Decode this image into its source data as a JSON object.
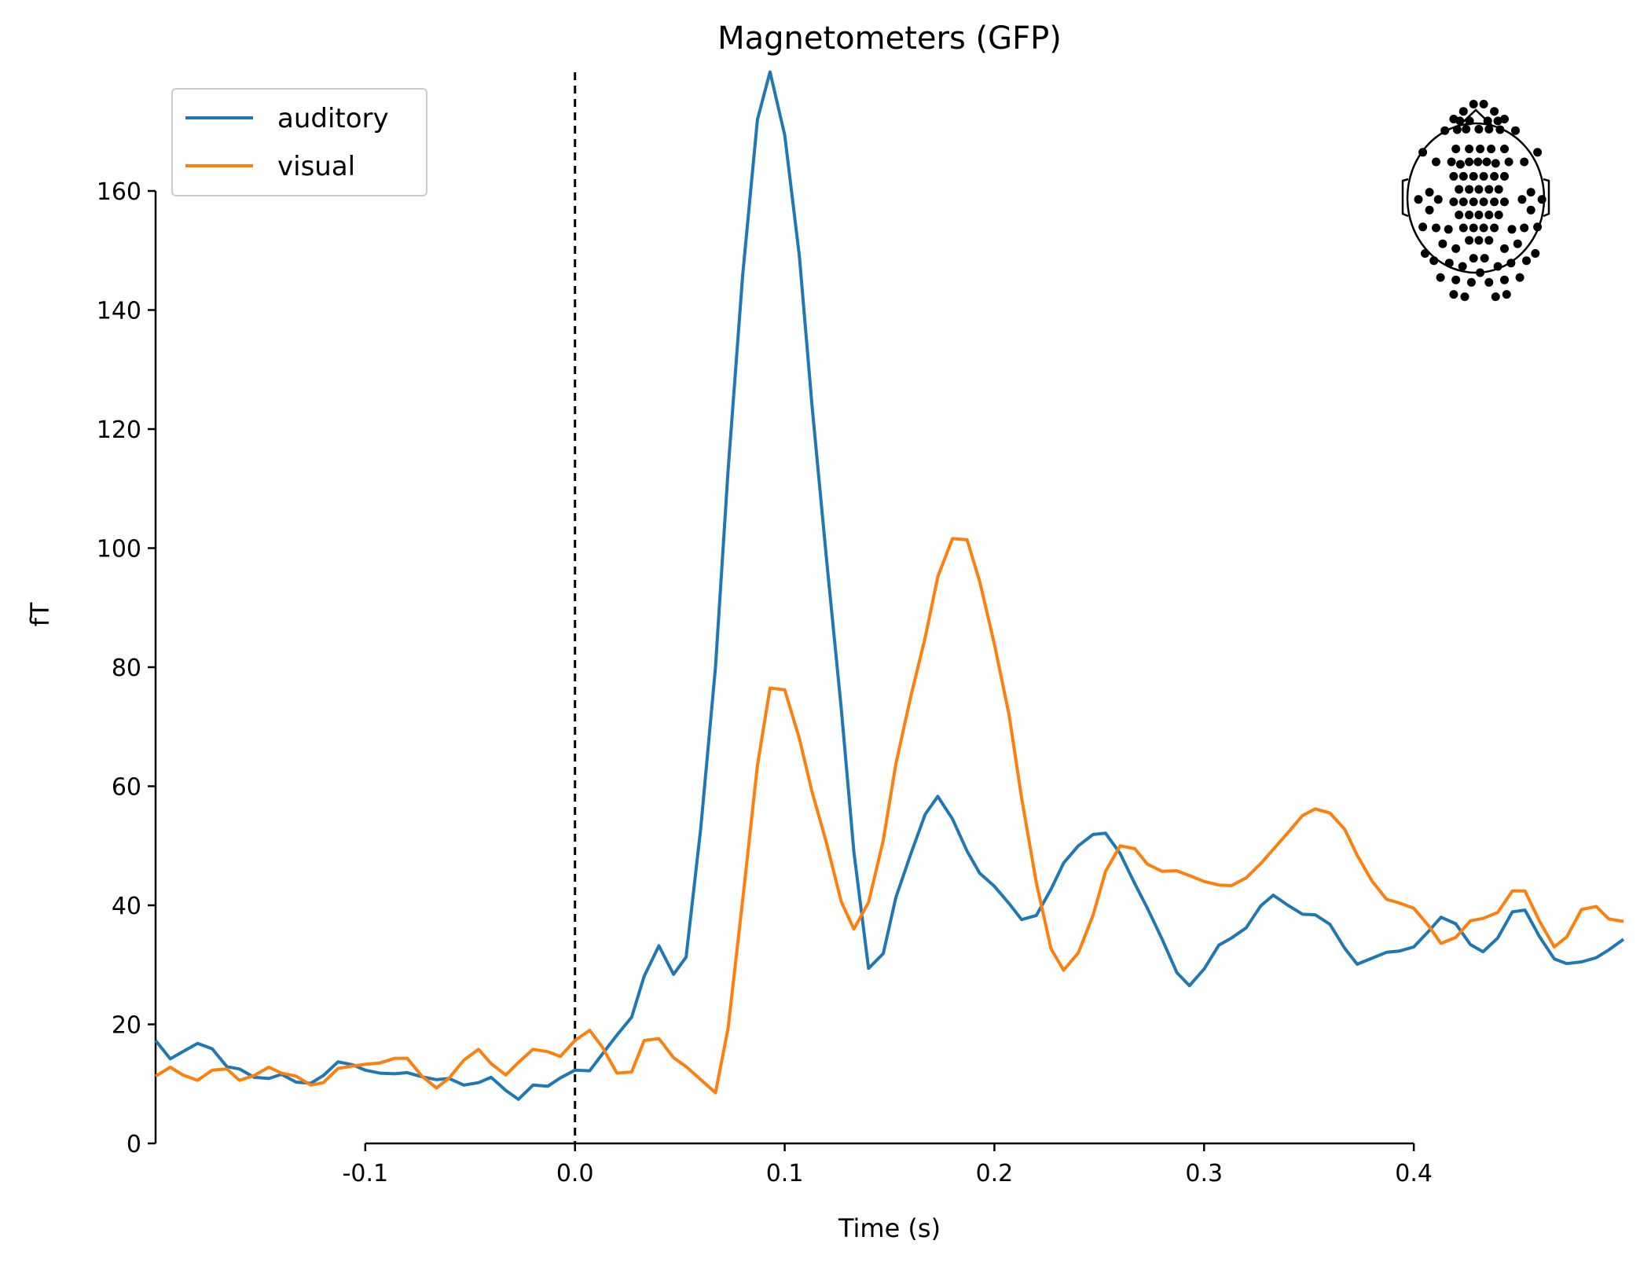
{
  "chart_data": {
    "type": "line",
    "title": "Magnetometers (GFP)",
    "xlabel": "Time (s)",
    "ylabel": "fT",
    "xlim": [
      -0.2,
      0.5
    ],
    "ylim": [
      0,
      160
    ],
    "x_ticks": [
      -0.1,
      0.0,
      0.1,
      0.2,
      0.3,
      0.4
    ],
    "x_tick_labels": [
      "-0.1",
      "0.0",
      "0.1",
      "0.2",
      "0.3",
      "0.4"
    ],
    "y_ticks": [
      0,
      20,
      40,
      60,
      80,
      100,
      120,
      140,
      160
    ],
    "y_tick_labels": [
      "0",
      "20",
      "40",
      "60",
      "80",
      "100",
      "120",
      "140",
      "160"
    ],
    "stimulus_onset": 0.0,
    "legend_position": "top-left",
    "sensor_inset": "top-right",
    "grid": false,
    "series": [
      {
        "name": "auditory",
        "color": "#1f77b4",
        "points": [
          [
            -0.2,
            17.3
          ],
          [
            -0.193,
            14.2
          ],
          [
            -0.187,
            15.4
          ],
          [
            -0.18,
            16.8
          ],
          [
            -0.173,
            15.9
          ],
          [
            -0.166,
            12.9
          ],
          [
            -0.16,
            12.5
          ],
          [
            -0.153,
            11.1
          ],
          [
            -0.146,
            10.9
          ],
          [
            -0.14,
            11.6
          ],
          [
            -0.133,
            10.3
          ],
          [
            -0.126,
            10.1
          ],
          [
            -0.12,
            11.4
          ],
          [
            -0.113,
            13.7
          ],
          [
            -0.106,
            13.2
          ],
          [
            -0.1,
            12.3
          ],
          [
            -0.093,
            11.8
          ],
          [
            -0.086,
            11.7
          ],
          [
            -0.08,
            11.9
          ],
          [
            -0.073,
            11.2
          ],
          [
            -0.066,
            10.7
          ],
          [
            -0.06,
            10.9
          ],
          [
            -0.053,
            9.8
          ],
          [
            -0.046,
            10.2
          ],
          [
            -0.04,
            11.1
          ],
          [
            -0.033,
            8.9
          ],
          [
            -0.027,
            7.4
          ],
          [
            -0.02,
            9.8
          ],
          [
            -0.013,
            9.6
          ],
          [
            -0.007,
            11.0
          ],
          [
            0.0,
            12.3
          ],
          [
            0.007,
            12.2
          ],
          [
            0.013,
            15.0
          ],
          [
            0.02,
            18.2
          ],
          [
            0.027,
            21.2
          ],
          [
            0.033,
            28.1
          ],
          [
            0.04,
            33.2
          ],
          [
            0.047,
            28.4
          ],
          [
            0.053,
            31.3
          ],
          [
            0.06,
            53.0
          ],
          [
            0.067,
            80.0
          ],
          [
            0.073,
            113.0
          ],
          [
            0.08,
            146.0
          ],
          [
            0.087,
            172.0
          ],
          [
            0.093,
            180.0
          ],
          [
            0.1,
            169.4
          ],
          [
            0.107,
            149.0
          ],
          [
            0.113,
            124.0
          ],
          [
            0.12,
            98.0
          ],
          [
            0.127,
            73.0
          ],
          [
            0.133,
            49.0
          ],
          [
            0.14,
            29.4
          ],
          [
            0.147,
            31.9
          ],
          [
            0.153,
            41.3
          ],
          [
            0.16,
            48.5
          ],
          [
            0.167,
            55.3
          ],
          [
            0.173,
            58.3
          ],
          [
            0.18,
            54.5
          ],
          [
            0.187,
            49.1
          ],
          [
            0.193,
            45.4
          ],
          [
            0.2,
            43.2
          ],
          [
            0.207,
            40.3
          ],
          [
            0.213,
            37.6
          ],
          [
            0.22,
            38.3
          ],
          [
            0.227,
            42.7
          ],
          [
            0.233,
            47.1
          ],
          [
            0.24,
            50.0
          ],
          [
            0.247,
            51.9
          ],
          [
            0.253,
            52.1
          ],
          [
            0.26,
            48.7
          ],
          [
            0.267,
            43.6
          ],
          [
            0.273,
            39.5
          ],
          [
            0.28,
            34.3
          ],
          [
            0.287,
            28.7
          ],
          [
            0.293,
            26.5
          ],
          [
            0.3,
            29.3
          ],
          [
            0.307,
            33.3
          ],
          [
            0.313,
            34.5
          ],
          [
            0.32,
            36.2
          ],
          [
            0.327,
            39.9
          ],
          [
            0.333,
            41.7
          ],
          [
            0.34,
            40.0
          ],
          [
            0.347,
            38.5
          ],
          [
            0.353,
            38.4
          ],
          [
            0.36,
            36.8
          ],
          [
            0.367,
            32.8
          ],
          [
            0.373,
            30.1
          ],
          [
            0.38,
            31.1
          ],
          [
            0.387,
            32.1
          ],
          [
            0.393,
            32.3
          ],
          [
            0.4,
            33.0
          ],
          [
            0.407,
            35.6
          ],
          [
            0.413,
            38.0
          ],
          [
            0.42,
            36.9
          ],
          [
            0.427,
            33.4
          ],
          [
            0.433,
            32.2
          ],
          [
            0.44,
            34.5
          ],
          [
            0.447,
            38.9
          ],
          [
            0.453,
            39.2
          ],
          [
            0.46,
            34.7
          ],
          [
            0.467,
            31.0
          ],
          [
            0.473,
            30.2
          ],
          [
            0.48,
            30.5
          ],
          [
            0.487,
            31.2
          ],
          [
            0.493,
            32.5
          ],
          [
            0.5,
            34.3
          ]
        ]
      },
      {
        "name": "visual",
        "color": "#ff7f0e",
        "points": [
          [
            -0.2,
            11.3
          ],
          [
            -0.193,
            12.8
          ],
          [
            -0.187,
            11.5
          ],
          [
            -0.18,
            10.6
          ],
          [
            -0.173,
            12.3
          ],
          [
            -0.166,
            12.5
          ],
          [
            -0.16,
            10.6
          ],
          [
            -0.153,
            11.4
          ],
          [
            -0.146,
            12.8
          ],
          [
            -0.14,
            11.8
          ],
          [
            -0.133,
            11.3
          ],
          [
            -0.126,
            9.8
          ],
          [
            -0.12,
            10.2
          ],
          [
            -0.113,
            12.6
          ],
          [
            -0.106,
            13.0
          ],
          [
            -0.1,
            13.3
          ],
          [
            -0.093,
            13.5
          ],
          [
            -0.086,
            14.3
          ],
          [
            -0.08,
            14.3
          ],
          [
            -0.073,
            11.3
          ],
          [
            -0.066,
            9.3
          ],
          [
            -0.06,
            11.0
          ],
          [
            -0.053,
            14.0
          ],
          [
            -0.046,
            15.8
          ],
          [
            -0.04,
            13.4
          ],
          [
            -0.033,
            11.5
          ],
          [
            -0.027,
            13.6
          ],
          [
            -0.02,
            15.8
          ],
          [
            -0.013,
            15.4
          ],
          [
            -0.007,
            14.6
          ],
          [
            0.0,
            17.3
          ],
          [
            0.007,
            19.0
          ],
          [
            0.013,
            16.2
          ],
          [
            0.02,
            11.8
          ],
          [
            0.027,
            12.0
          ],
          [
            0.033,
            17.3
          ],
          [
            0.04,
            17.6
          ],
          [
            0.047,
            14.4
          ],
          [
            0.053,
            12.9
          ],
          [
            0.06,
            10.7
          ],
          [
            0.067,
            8.5
          ],
          [
            0.073,
            19.3
          ],
          [
            0.08,
            41.0
          ],
          [
            0.087,
            63.5
          ],
          [
            0.093,
            76.5
          ],
          [
            0.1,
            76.2
          ],
          [
            0.107,
            68.0
          ],
          [
            0.113,
            59.1
          ],
          [
            0.12,
            50.4
          ],
          [
            0.127,
            40.6
          ],
          [
            0.133,
            36.0
          ],
          [
            0.14,
            40.5
          ],
          [
            0.147,
            50.9
          ],
          [
            0.153,
            63.7
          ],
          [
            0.16,
            74.9
          ],
          [
            0.167,
            85.0
          ],
          [
            0.173,
            95.2
          ],
          [
            0.18,
            101.6
          ],
          [
            0.187,
            101.4
          ],
          [
            0.193,
            94.4
          ],
          [
            0.2,
            83.9
          ],
          [
            0.207,
            72.0
          ],
          [
            0.213,
            58.0
          ],
          [
            0.22,
            43.8
          ],
          [
            0.227,
            32.7
          ],
          [
            0.233,
            29.1
          ],
          [
            0.24,
            32.0
          ],
          [
            0.247,
            38.3
          ],
          [
            0.253,
            45.7
          ],
          [
            0.26,
            50.0
          ],
          [
            0.267,
            49.5
          ],
          [
            0.273,
            46.9
          ],
          [
            0.28,
            45.7
          ],
          [
            0.287,
            45.8
          ],
          [
            0.293,
            45.0
          ],
          [
            0.3,
            44.0
          ],
          [
            0.307,
            43.4
          ],
          [
            0.313,
            43.3
          ],
          [
            0.32,
            44.6
          ],
          [
            0.327,
            47.0
          ],
          [
            0.333,
            49.4
          ],
          [
            0.34,
            52.2
          ],
          [
            0.347,
            55.1
          ],
          [
            0.353,
            56.2
          ],
          [
            0.36,
            55.5
          ],
          [
            0.367,
            52.8
          ],
          [
            0.373,
            48.4
          ],
          [
            0.38,
            44.1
          ],
          [
            0.387,
            41.0
          ],
          [
            0.393,
            40.4
          ],
          [
            0.4,
            39.5
          ],
          [
            0.407,
            36.6
          ],
          [
            0.413,
            33.6
          ],
          [
            0.42,
            34.6
          ],
          [
            0.427,
            37.4
          ],
          [
            0.433,
            37.8
          ],
          [
            0.44,
            38.8
          ],
          [
            0.447,
            42.4
          ],
          [
            0.453,
            42.4
          ],
          [
            0.46,
            37.3
          ],
          [
            0.467,
            33.0
          ],
          [
            0.473,
            34.7
          ],
          [
            0.48,
            39.3
          ],
          [
            0.487,
            39.8
          ],
          [
            0.493,
            37.7
          ],
          [
            0.5,
            37.3
          ]
        ]
      }
    ]
  },
  "sensor_layout": {
    "dots": [
      [
        -0.05,
        -1.95
      ],
      [
        0.18,
        -1.95
      ],
      [
        -0.28,
        -1.8
      ],
      [
        0.42,
        -1.8
      ],
      [
        -0.5,
        -1.64
      ],
      [
        0.65,
        -1.64
      ],
      [
        -0.36,
        -1.6
      ],
      [
        0.5,
        -1.6
      ],
      [
        -0.14,
        -1.6
      ],
      [
        0.27,
        -1.6
      ],
      [
        -0.7,
        -1.4
      ],
      [
        0.9,
        -1.4
      ],
      [
        -0.42,
        -1.42
      ],
      [
        0.55,
        -1.42
      ],
      [
        -0.22,
        -1.43
      ],
      [
        0.07,
        -1.43
      ],
      [
        0.3,
        -1.43
      ],
      [
        -1.2,
        -0.95
      ],
      [
        1.4,
        -0.95
      ],
      [
        -0.9,
        -0.75
      ],
      [
        1.1,
        -0.75
      ],
      [
        -0.55,
        -0.75
      ],
      [
        0.75,
        -0.75
      ],
      [
        -0.45,
        -1.02
      ],
      [
        -0.15,
        -1.02
      ],
      [
        0.1,
        -1.02
      ],
      [
        0.35,
        -1.02
      ],
      [
        0.65,
        -1.02
      ],
      [
        -0.35,
        -0.7
      ],
      [
        -0.15,
        -0.75
      ],
      [
        0.05,
        -0.75
      ],
      [
        0.25,
        -0.75
      ],
      [
        0.45,
        -0.72
      ],
      [
        -0.5,
        -0.45
      ],
      [
        -0.28,
        -0.45
      ],
      [
        -0.05,
        -0.45
      ],
      [
        0.18,
        -0.45
      ],
      [
        0.42,
        -0.45
      ],
      [
        0.65,
        -0.45
      ],
      [
        -0.38,
        -0.18
      ],
      [
        -0.15,
        -0.18
      ],
      [
        0.07,
        -0.18
      ],
      [
        0.3,
        -0.18
      ],
      [
        0.52,
        -0.18
      ],
      [
        -0.5,
        0.08
      ],
      [
        -0.28,
        0.08
      ],
      [
        -0.05,
        0.08
      ],
      [
        0.18,
        0.08
      ],
      [
        0.42,
        0.08
      ],
      [
        0.65,
        0.08
      ],
      [
        -0.38,
        0.35
      ],
      [
        -0.15,
        0.35
      ],
      [
        0.07,
        0.35
      ],
      [
        0.3,
        0.35
      ],
      [
        0.52,
        0.35
      ],
      [
        -0.28,
        0.62
      ],
      [
        -0.05,
        0.62
      ],
      [
        0.18,
        0.62
      ],
      [
        0.42,
        0.62
      ],
      [
        -0.15,
        0.88
      ],
      [
        0.07,
        0.88
      ],
      [
        0.3,
        0.88
      ],
      [
        -1.3,
        0.03
      ],
      [
        1.5,
        0.03
      ],
      [
        -1.05,
        -0.12
      ],
      [
        1.25,
        -0.12
      ],
      [
        -0.85,
        0.03
      ],
      [
        1.05,
        0.03
      ],
      [
        -1.05,
        0.25
      ],
      [
        1.25,
        0.25
      ],
      [
        -1.2,
        0.6
      ],
      [
        1.4,
        0.6
      ],
      [
        -0.9,
        0.62
      ],
      [
        1.1,
        0.62
      ],
      [
        -0.62,
        0.65
      ],
      [
        0.82,
        0.65
      ],
      [
        -0.75,
        0.95
      ],
      [
        0.95,
        0.95
      ],
      [
        -0.45,
        1.05
      ],
      [
        0.65,
        1.05
      ],
      [
        -1.15,
        1.15
      ],
      [
        1.35,
        1.15
      ],
      [
        -0.95,
        1.3
      ],
      [
        1.15,
        1.3
      ],
      [
        -0.6,
        1.35
      ],
      [
        0.8,
        1.35
      ],
      [
        -0.3,
        1.42
      ],
      [
        0.5,
        1.42
      ],
      [
        -0.05,
        1.25
      ],
      [
        0.2,
        1.25
      ],
      [
        -0.8,
        1.65
      ],
      [
        1.0,
        1.65
      ],
      [
        -0.45,
        1.7
      ],
      [
        0.65,
        1.7
      ],
      [
        -0.1,
        1.75
      ],
      [
        0.3,
        1.75
      ],
      [
        -0.5,
        2.0
      ],
      [
        0.7,
        2.0
      ],
      [
        0.1,
        1.55
      ],
      [
        -0.25,
        2.05
      ],
      [
        0.45,
        2.05
      ]
    ]
  }
}
